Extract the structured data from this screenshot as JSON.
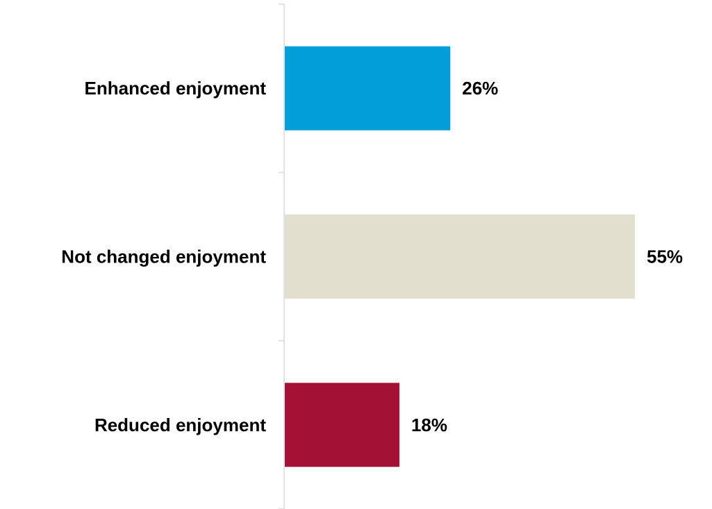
{
  "chart_data": {
    "type": "bar",
    "orientation": "horizontal",
    "categories": [
      "Enhanced enjoyment",
      "Not changed enjoyment",
      "Reduced enjoyment"
    ],
    "values": [
      26,
      55,
      18
    ],
    "value_labels": [
      "26%",
      "55%",
      "18%"
    ],
    "colors": [
      "#029ed9",
      "#e3dfcf",
      "#a31234"
    ],
    "axis_color": "#d9d9d9",
    "xlim": [
      0,
      55
    ],
    "grid": false,
    "legend": "none",
    "title": "",
    "xlabel": "",
    "ylabel": ""
  }
}
